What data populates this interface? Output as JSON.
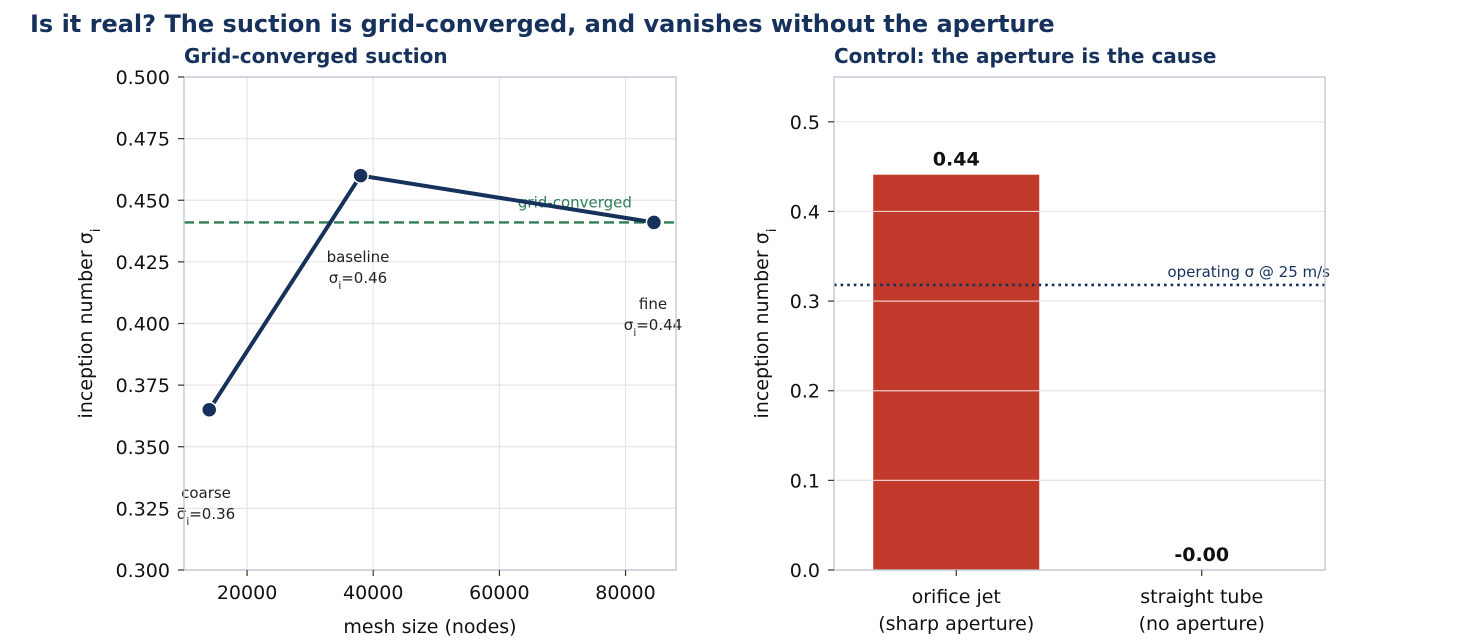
{
  "suptitle": "Is it real? The suction is grid-converged, and vanishes without the aperture",
  "colors": {
    "title": "#16325c",
    "line": "#16325c",
    "converged": "#2e7d57",
    "bar_orifice": "#c0392b",
    "operating": "#16325c"
  },
  "chart_data": [
    {
      "type": "line",
      "title": "Grid-converged suction",
      "xlabel": "mesh size  (nodes)",
      "ylabel": "inception number  σ_i",
      "xlim": [
        10000,
        88000
      ],
      "ylim": [
        0.3,
        0.5
      ],
      "xticks": [
        20000,
        40000,
        60000,
        80000
      ],
      "xtick_labels": [
        "20000",
        "40000",
        "60000",
        "80000"
      ],
      "yticks": [
        0.3,
        0.325,
        0.35,
        0.375,
        0.4,
        0.425,
        0.45,
        0.475,
        0.5
      ],
      "ytick_labels": [
        "0.300",
        "0.325",
        "0.350",
        "0.375",
        "0.400",
        "0.425",
        "0.450",
        "0.475",
        "0.500"
      ],
      "grid": true,
      "series": [
        {
          "x": [
            14000,
            38000,
            84500
          ],
          "y": [
            0.365,
            0.46,
            0.441
          ]
        }
      ],
      "point_annotations": [
        {
          "name": "coarse",
          "value": "σ_i=0.36"
        },
        {
          "name": "baseline",
          "value": "σ_i=0.46"
        },
        {
          "name": "fine",
          "value": "σ_i=0.44"
        }
      ],
      "reference_line": {
        "y": 0.441,
        "style": "dashed",
        "label": "grid-converged"
      }
    },
    {
      "type": "bar",
      "title": "Control: the aperture is the cause",
      "ylabel": "inception number  σ_i",
      "ylim": [
        0,
        0.55
      ],
      "yticks": [
        0,
        0.1,
        0.2,
        0.3,
        0.4,
        0.5
      ],
      "ytick_labels": [
        "0.0",
        "0.1",
        "0.2",
        "0.3",
        "0.4",
        "0.5"
      ],
      "grid": true,
      "categories": [
        "orifice jet\n(sharp aperture)",
        "straight tube\n(no aperture)"
      ],
      "values": [
        0.441,
        0.0
      ],
      "value_labels": [
        "0.44",
        "-0.00"
      ],
      "reference_line": {
        "y": 0.318,
        "style": "dotted",
        "label": "operating σ @ 25 m/s"
      }
    }
  ]
}
